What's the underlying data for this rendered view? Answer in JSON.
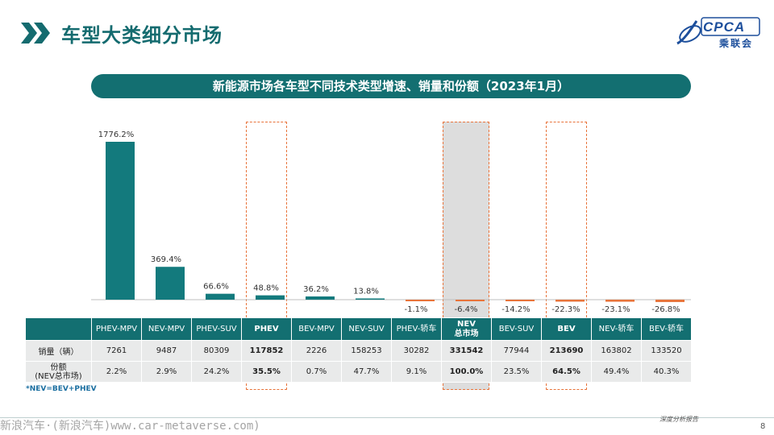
{
  "page": {
    "title": "车型大类细分市场",
    "banner": "新能源市场各车型不同技术类型增速、销量和份额（2023年1月）",
    "logo_text": "CPCA",
    "logo_cn": "乘联会",
    "footnote": "*NEV=BEV+PHEV",
    "footer_text": "深度分析报告",
    "page_number": "8",
    "bottom_watermark": "新浪汽车·(新浪汽车)www.car-metaverse.com)"
  },
  "colors": {
    "primary": "#136f71",
    "positive_bar": "#137a7d",
    "negative_bar": "#e8743b",
    "highlight_border": "#e8743b",
    "table_body": "#e9eaea"
  },
  "table": {
    "row_labels": {
      "sales": "销量（辆）",
      "share_line1": "份额",
      "share_line2": "(NEV总市场)"
    }
  },
  "chart_data": {
    "type": "bar",
    "categories": [
      "PHEV-MPV",
      "NEV-MPV",
      "PHEV-SUV",
      "PHEV",
      "BEV-MPV",
      "NEV-SUV",
      "PHEV-轿车",
      "NEV总市场",
      "BEV-SUV",
      "BEV",
      "NEV-轿车",
      "BEV-轿车"
    ],
    "category_lines": [
      [
        "PHEV-MPV"
      ],
      [
        "NEV-MPV"
      ],
      [
        "PHEV-SUV"
      ],
      [
        "PHEV"
      ],
      [
        "BEV-MPV"
      ],
      [
        "NEV-SUV"
      ],
      [
        "PHEV-轿车"
      ],
      [
        "NEV",
        "总市场"
      ],
      [
        "BEV-SUV"
      ],
      [
        "BEV"
      ],
      [
        "NEV-轿车"
      ],
      [
        "BEV-轿车"
      ]
    ],
    "growth": [
      1776.2,
      369.4,
      66.6,
      48.8,
      36.2,
      13.8,
      -1.1,
      -6.4,
      -14.2,
      -22.3,
      -23.1,
      -26.8
    ],
    "growth_labels": [
      "1776.2%",
      "369.4%",
      "66.6%",
      "48.8%",
      "36.2%",
      "13.8%",
      "-1.1%",
      "-6.4%",
      "-14.2%",
      "-22.3%",
      "-23.1%",
      "-26.8%"
    ],
    "sales": [
      7261,
      9487,
      80309,
      117852,
      2226,
      158253,
      30282,
      331542,
      77944,
      213690,
      163802,
      133520
    ],
    "share_labels": [
      "2.2%",
      "2.9%",
      "24.2%",
      "35.5%",
      "0.7%",
      "47.7%",
      "9.1%",
      "100.0%",
      "23.5%",
      "64.5%",
      "49.4%",
      "40.3%"
    ],
    "highlighted": [
      "PHEV",
      "NEV总市场",
      "BEV"
    ],
    "ylim": [
      -30,
      1800
    ],
    "unit": "%"
  }
}
